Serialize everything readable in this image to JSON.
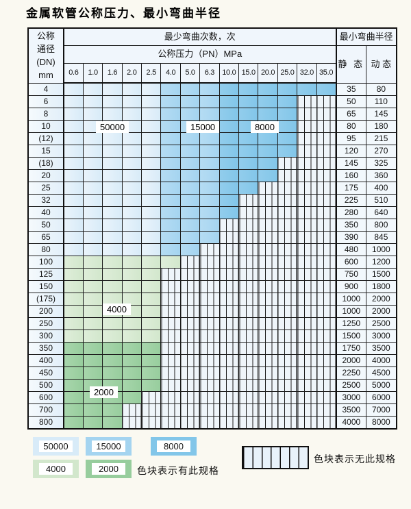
{
  "title": "金属软管公称压力、最小弯曲半径",
  "colors": {
    "b1": "#D8EBF8",
    "b2": "#A4D4F0",
    "b3": "#82C6E9",
    "g1": "#D2E7CC",
    "g2": "#97CD9D",
    "hatchbg": "#EFF5FA",
    "grid": "#1C1C1C",
    "head": "#F0F6FC"
  },
  "table": {
    "header": {
      "dn_lines": [
        "公称",
        "通径",
        "(DN)",
        "mm"
      ],
      "cycles_label": "最少弯曲次数，次",
      "pressure_label": "公称压力（PN）MPa",
      "radius_label": "最小弯曲半径",
      "static_label": "静 态",
      "dynamic_label": "动 态",
      "pressures": [
        "0.6",
        "1.0",
        "1.6",
        "2.0",
        "2.5",
        "4.0",
        "5.0",
        "6.3",
        "10.0",
        "15.0",
        "20.0",
        "25.0",
        "32.0",
        "35.0"
      ]
    },
    "zone_values": {
      "b1": "50000",
      "b2": "15000",
      "b3": "8000",
      "g1": "4000",
      "g2": "2000"
    },
    "rows": [
      {
        "dn": "4",
        "static": "35",
        "dynamic": "80",
        "cells": [
          "b1",
          "b1",
          "b1",
          "b1",
          "b1",
          "b2",
          "b2",
          "b2",
          "b3",
          "b3",
          "b3",
          "b3",
          "b3",
          "b3"
        ]
      },
      {
        "dn": "6",
        "static": "50",
        "dynamic": "110",
        "cells": [
          "b1",
          "b1",
          "b1",
          "b1",
          "b1",
          "b2",
          "b2",
          "b2",
          "b3",
          "b3",
          "b3",
          "b3",
          "x",
          "x"
        ]
      },
      {
        "dn": "8",
        "static": "65",
        "dynamic": "145",
        "cells": [
          "b1",
          "b1",
          "b1",
          "b1",
          "b1",
          "b2",
          "b2",
          "b2",
          "b3",
          "b3",
          "b3",
          "b3",
          "x",
          "x"
        ]
      },
      {
        "dn": "10",
        "static": "80",
        "dynamic": "180",
        "cells": [
          "b1",
          "b1",
          "b1",
          "b1",
          "b1",
          "b2",
          "b2",
          "b2",
          "b3",
          "b3",
          "b3",
          "b3",
          "x",
          "x"
        ]
      },
      {
        "dn": "(12)",
        "static": "95",
        "dynamic": "215",
        "cells": [
          "b1",
          "b1",
          "b1",
          "b1",
          "b1",
          "b2",
          "b2",
          "b2",
          "b3",
          "b3",
          "b3",
          "b3",
          "x",
          "x"
        ]
      },
      {
        "dn": "15",
        "static": "120",
        "dynamic": "270",
        "cells": [
          "b1",
          "b1",
          "b1",
          "b1",
          "b1",
          "b2",
          "b2",
          "b2",
          "b3",
          "b3",
          "b3",
          "b3",
          "x",
          "x"
        ]
      },
      {
        "dn": "(18)",
        "static": "145",
        "dynamic": "325",
        "cells": [
          "b1",
          "b1",
          "b1",
          "b1",
          "b1",
          "b2",
          "b2",
          "b2",
          "b3",
          "b3",
          "b3",
          "x",
          "x",
          "x"
        ]
      },
      {
        "dn": "20",
        "static": "160",
        "dynamic": "360",
        "cells": [
          "b1",
          "b1",
          "b1",
          "b1",
          "b1",
          "b2",
          "b2",
          "b2",
          "b3",
          "b3",
          "b3",
          "x",
          "x",
          "x"
        ]
      },
      {
        "dn": "25",
        "static": "175",
        "dynamic": "400",
        "cells": [
          "b1",
          "b1",
          "b1",
          "b1",
          "b1",
          "b2",
          "b2",
          "b2",
          "b3",
          "b3",
          "x",
          "x",
          "x",
          "x"
        ]
      },
      {
        "dn": "32",
        "static": "225",
        "dynamic": "510",
        "cells": [
          "b1",
          "b1",
          "b1",
          "b1",
          "b1",
          "b2",
          "b2",
          "b2",
          "b3",
          "x",
          "x",
          "x",
          "x",
          "x"
        ]
      },
      {
        "dn": "40",
        "static": "280",
        "dynamic": "640",
        "cells": [
          "b1",
          "b1",
          "b1",
          "b1",
          "b1",
          "b2",
          "b2",
          "b2",
          "b3",
          "x",
          "x",
          "x",
          "x",
          "x"
        ]
      },
      {
        "dn": "50",
        "static": "350",
        "dynamic": "800",
        "cells": [
          "b1",
          "b1",
          "b1",
          "b1",
          "b1",
          "b2",
          "b2",
          "b2",
          "x",
          "x",
          "x",
          "x",
          "x",
          "x"
        ]
      },
      {
        "dn": "65",
        "static": "390",
        "dynamic": "845",
        "cells": [
          "b1",
          "b1",
          "b1",
          "b1",
          "b1",
          "b2",
          "b2",
          "b2",
          "x",
          "x",
          "x",
          "x",
          "x",
          "x"
        ]
      },
      {
        "dn": "80",
        "static": "480",
        "dynamic": "1000",
        "cells": [
          "b1",
          "b1",
          "b1",
          "b1",
          "b1",
          "b2",
          "b2",
          "x",
          "x",
          "x",
          "x",
          "x",
          "x",
          "x"
        ]
      },
      {
        "dn": "100",
        "static": "600",
        "dynamic": "1200",
        "cells": [
          "g1",
          "g1",
          "g1",
          "g1",
          "g1",
          "g1",
          "x",
          "x",
          "x",
          "x",
          "x",
          "x",
          "x",
          "x"
        ]
      },
      {
        "dn": "125",
        "static": "750",
        "dynamic": "1500",
        "cells": [
          "g1",
          "g1",
          "g1",
          "g1",
          "g1",
          "x",
          "x",
          "x",
          "x",
          "x",
          "x",
          "x",
          "x",
          "x"
        ]
      },
      {
        "dn": "150",
        "static": "900",
        "dynamic": "1800",
        "cells": [
          "g1",
          "g1",
          "g1",
          "g1",
          "g1",
          "x",
          "x",
          "x",
          "x",
          "x",
          "x",
          "x",
          "x",
          "x"
        ]
      },
      {
        "dn": "(175)",
        "static": "1000",
        "dynamic": "2000",
        "cells": [
          "g1",
          "g1",
          "g1",
          "g1",
          "g1",
          "x",
          "x",
          "x",
          "x",
          "x",
          "x",
          "x",
          "x",
          "x"
        ]
      },
      {
        "dn": "200",
        "static": "1000",
        "dynamic": "2000",
        "cells": [
          "g1",
          "g1",
          "g1",
          "g1",
          "g1",
          "x",
          "x",
          "x",
          "x",
          "x",
          "x",
          "x",
          "x",
          "x"
        ]
      },
      {
        "dn": "250",
        "static": "1250",
        "dynamic": "2500",
        "cells": [
          "g1",
          "g1",
          "g1",
          "g1",
          "g1",
          "x",
          "x",
          "x",
          "x",
          "x",
          "x",
          "x",
          "x",
          "x"
        ]
      },
      {
        "dn": "300",
        "static": "1500",
        "dynamic": "3000",
        "cells": [
          "g1",
          "g1",
          "g1",
          "g1",
          "g1",
          "x",
          "x",
          "x",
          "x",
          "x",
          "x",
          "x",
          "x",
          "x"
        ]
      },
      {
        "dn": "350",
        "static": "1750",
        "dynamic": "3500",
        "cells": [
          "g2",
          "g2",
          "g2",
          "g2",
          "g2",
          "x",
          "x",
          "x",
          "x",
          "x",
          "x",
          "x",
          "x",
          "x"
        ]
      },
      {
        "dn": "400",
        "static": "2000",
        "dynamic": "4000",
        "cells": [
          "g2",
          "g2",
          "g2",
          "g2",
          "g2",
          "x",
          "x",
          "x",
          "x",
          "x",
          "x",
          "x",
          "x",
          "x"
        ]
      },
      {
        "dn": "450",
        "static": "2250",
        "dynamic": "4500",
        "cells": [
          "g2",
          "g2",
          "g2",
          "g2",
          "g2",
          "x",
          "x",
          "x",
          "x",
          "x",
          "x",
          "x",
          "x",
          "x"
        ]
      },
      {
        "dn": "500",
        "static": "2500",
        "dynamic": "5000",
        "cells": [
          "g2",
          "g2",
          "g2",
          "g2",
          "g2",
          "x",
          "x",
          "x",
          "x",
          "x",
          "x",
          "x",
          "x",
          "x"
        ]
      },
      {
        "dn": "600",
        "static": "3000",
        "dynamic": "6000",
        "cells": [
          "g2",
          "g2",
          "g2",
          "g2",
          "x",
          "x",
          "x",
          "x",
          "x",
          "x",
          "x",
          "x",
          "x",
          "x"
        ]
      },
      {
        "dn": "700",
        "static": "3500",
        "dynamic": "7000",
        "cells": [
          "g2",
          "g2",
          "g2",
          "x",
          "x",
          "x",
          "x",
          "x",
          "x",
          "x",
          "x",
          "x",
          "x",
          "x"
        ]
      },
      {
        "dn": "800",
        "static": "4000",
        "dynamic": "8000",
        "cells": [
          "g2",
          "g2",
          "g2",
          "x",
          "x",
          "x",
          "x",
          "x",
          "x",
          "x",
          "x",
          "x",
          "x",
          "x"
        ]
      }
    ]
  },
  "overlays": [
    {
      "id": "label-50000",
      "text": "50000"
    },
    {
      "id": "label-15000",
      "text": "15000"
    },
    {
      "id": "label-8000",
      "text": "8000"
    },
    {
      "id": "label-4000",
      "text": "4000"
    },
    {
      "id": "label-2000",
      "text": "2000"
    }
  ],
  "legend": {
    "items": [
      {
        "value": "50000",
        "zone": "b1"
      },
      {
        "value": "15000",
        "zone": "b2"
      },
      {
        "value": "8000",
        "zone": "b3"
      },
      {
        "value": "4000",
        "zone": "g1"
      },
      {
        "value": "2000",
        "zone": "g2"
      }
    ],
    "has_spec_note": "色块表示有此规格",
    "no_spec_note": "色块表示无此规格"
  }
}
